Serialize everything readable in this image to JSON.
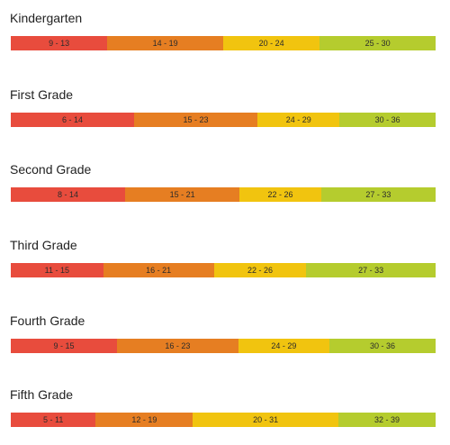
{
  "chart_data": {
    "type": "bar",
    "orientation": "horizontal",
    "stacked": true,
    "colors": [
      "#e84c3d",
      "#e67e22",
      "#f1c40f",
      "#b5cc2e"
    ],
    "grades": [
      {
        "title": "Kindergarten",
        "segments": [
          {
            "label": "9 - 13",
            "from": 9,
            "to": 13
          },
          {
            "label": "14 - 19",
            "from": 14,
            "to": 19
          },
          {
            "label": "20 - 24",
            "from": 20,
            "to": 24
          },
          {
            "label": "25 - 30",
            "from": 25,
            "to": 30
          }
        ]
      },
      {
        "title": "First Grade",
        "segments": [
          {
            "label": "6 - 14",
            "from": 6,
            "to": 14
          },
          {
            "label": "15 - 23",
            "from": 15,
            "to": 23
          },
          {
            "label": "24 - 29",
            "from": 24,
            "to": 29
          },
          {
            "label": "30 - 36",
            "from": 30,
            "to": 36
          }
        ]
      },
      {
        "title": "Second Grade",
        "segments": [
          {
            "label": "8 - 14",
            "from": 8,
            "to": 14
          },
          {
            "label": "15 - 21",
            "from": 15,
            "to": 21
          },
          {
            "label": "22 - 26",
            "from": 22,
            "to": 26
          },
          {
            "label": "27 - 33",
            "from": 27,
            "to": 33
          }
        ]
      },
      {
        "title": "Third Grade",
        "segments": [
          {
            "label": "11 - 15",
            "from": 11,
            "to": 15
          },
          {
            "label": "16 - 21",
            "from": 16,
            "to": 21
          },
          {
            "label": "22 - 26",
            "from": 22,
            "to": 26
          },
          {
            "label": "27 - 33",
            "from": 27,
            "to": 33
          }
        ]
      },
      {
        "title": "Fourth Grade",
        "segments": [
          {
            "label": "9 - 15",
            "from": 9,
            "to": 15
          },
          {
            "label": "16 - 23",
            "from": 16,
            "to": 23
          },
          {
            "label": "24 - 29",
            "from": 24,
            "to": 29
          },
          {
            "label": "30 - 36",
            "from": 30,
            "to": 36
          }
        ]
      },
      {
        "title": "Fifth Grade",
        "segments": [
          {
            "label": "5 - 11",
            "from": 5,
            "to": 11
          },
          {
            "label": "12 - 19",
            "from": 12,
            "to": 19
          },
          {
            "label": "20 - 31",
            "from": 20,
            "to": 31
          },
          {
            "label": "32 - 39",
            "from": 32,
            "to": 39
          }
        ]
      }
    ]
  }
}
